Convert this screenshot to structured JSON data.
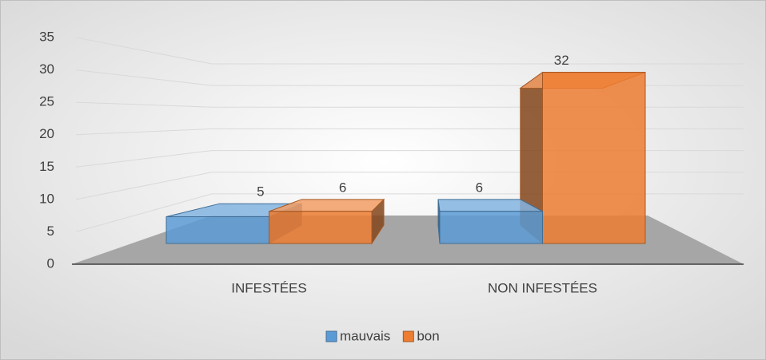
{
  "chart_data": {
    "type": "bar",
    "categories": [
      "INFESTÉES",
      "NON INFESTÉES"
    ],
    "series": [
      {
        "name": "mauvais",
        "color": "#5b9bd5",
        "values": [
          5,
          6
        ]
      },
      {
        "name": "bon",
        "color": "#ed7d31",
        "values": [
          6,
          32
        ]
      }
    ],
    "ylim": [
      0,
      35
    ],
    "yticks": [
      0,
      5,
      10,
      15,
      20,
      25,
      30,
      35
    ],
    "grid": true,
    "legend": "bottom"
  }
}
